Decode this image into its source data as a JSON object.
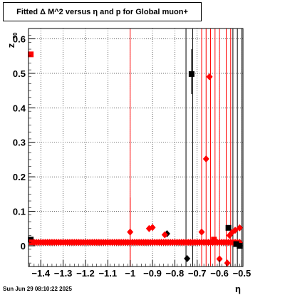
{
  "title": "Fitted Δ M^2 versus η and p for Global muon+",
  "footer": {
    "date": "Sun Jun 29 08:10:22 2025"
  },
  "chart_data": {
    "type": "scatter",
    "title": "Fitted Δ M^2 versus η and p for Global muon+",
    "xlabel": "η",
    "ylabel": "z",
    "xlim": [
      -1.455,
      -0.495
    ],
    "ylim": [
      -0.06,
      0.63
    ],
    "x_ticks": [
      -1.4,
      -1.3,
      -1.2,
      -1.1,
      -1,
      -0.9,
      -0.8,
      -0.7,
      -0.6,
      -0.5
    ],
    "x_tick_labels": [
      "−1.4",
      "−1.3",
      "−1.2",
      "−1.1",
      "−1",
      "−0.9",
      "−0.8",
      "−0.7",
      "−0.6",
      "−0.5"
    ],
    "y_ticks": [
      0,
      0.1,
      0.2,
      0.3,
      0.4,
      0.5,
      0.6
    ],
    "y_tick_labels": [
      "0",
      "0.1",
      "0.2",
      "0.3",
      "0.4",
      "0.5",
      "0.6"
    ],
    "grid": true,
    "colors": {
      "black": "#000000",
      "red": "#ff0000"
    },
    "series": [
      {
        "color": "#000000",
        "points": [
          {
            "x": -1.445,
            "y": 0.018,
            "marker": "square"
          },
          {
            "x": -0.835,
            "y": 0.035,
            "marker": "diamond"
          },
          {
            "x": -0.745,
            "y": -0.037,
            "marker": "diamond"
          },
          {
            "x": -0.725,
            "y": 0.498,
            "marker": "square",
            "err_lo": 0.44,
            "err_hi": 0.57
          },
          {
            "x": -0.56,
            "y": 0.052,
            "marker": "square"
          },
          {
            "x": -0.525,
            "y": 0.005,
            "marker": "square"
          },
          {
            "x": -0.51,
            "y": 0.0,
            "marker": "square"
          }
        ],
        "verticals": [
          -0.75,
          -0.72,
          -0.54,
          -0.52,
          -0.5
        ]
      },
      {
        "color": "#ff0000",
        "points": [
          {
            "x": -1.445,
            "y": 0.555,
            "marker": "square"
          },
          {
            "x": -1.44,
            "y": 0.01,
            "marker": "square"
          },
          {
            "x": -1.0,
            "y": 0.04,
            "marker": "diamond",
            "err_lo": -0.06,
            "err_hi": 0.14
          },
          {
            "x": -0.915,
            "y": 0.05,
            "marker": "diamond"
          },
          {
            "x": -0.9,
            "y": 0.053,
            "marker": "diamond"
          },
          {
            "x": -0.845,
            "y": 0.032,
            "marker": "diamond"
          },
          {
            "x": -0.68,
            "y": 0.04,
            "marker": "diamond"
          },
          {
            "x": -0.66,
            "y": 0.252,
            "marker": "diamond"
          },
          {
            "x": -0.645,
            "y": 0.49,
            "marker": "diamond"
          },
          {
            "x": -0.625,
            "y": 0.018,
            "marker": "square"
          },
          {
            "x": -0.6,
            "y": -0.038,
            "marker": "diamond"
          },
          {
            "x": -0.565,
            "y": -0.05,
            "marker": "diamond"
          },
          {
            "x": -0.555,
            "y": 0.03,
            "marker": "diamond"
          },
          {
            "x": -0.545,
            "y": 0.038,
            "marker": "diamond"
          },
          {
            "x": -0.53,
            "y": 0.045,
            "marker": "diamond"
          },
          {
            "x": -0.51,
            "y": 0.052,
            "marker": "diamond"
          }
        ],
        "band": {
          "x_start": -1.43,
          "x_end": -0.505,
          "y": 0.01,
          "step": 0.01,
          "marker": "diamond"
        },
        "verticals": [
          -1.0,
          -0.68,
          -0.66,
          -0.64,
          -0.62,
          -0.6,
          -0.57,
          -0.55
        ]
      }
    ]
  }
}
